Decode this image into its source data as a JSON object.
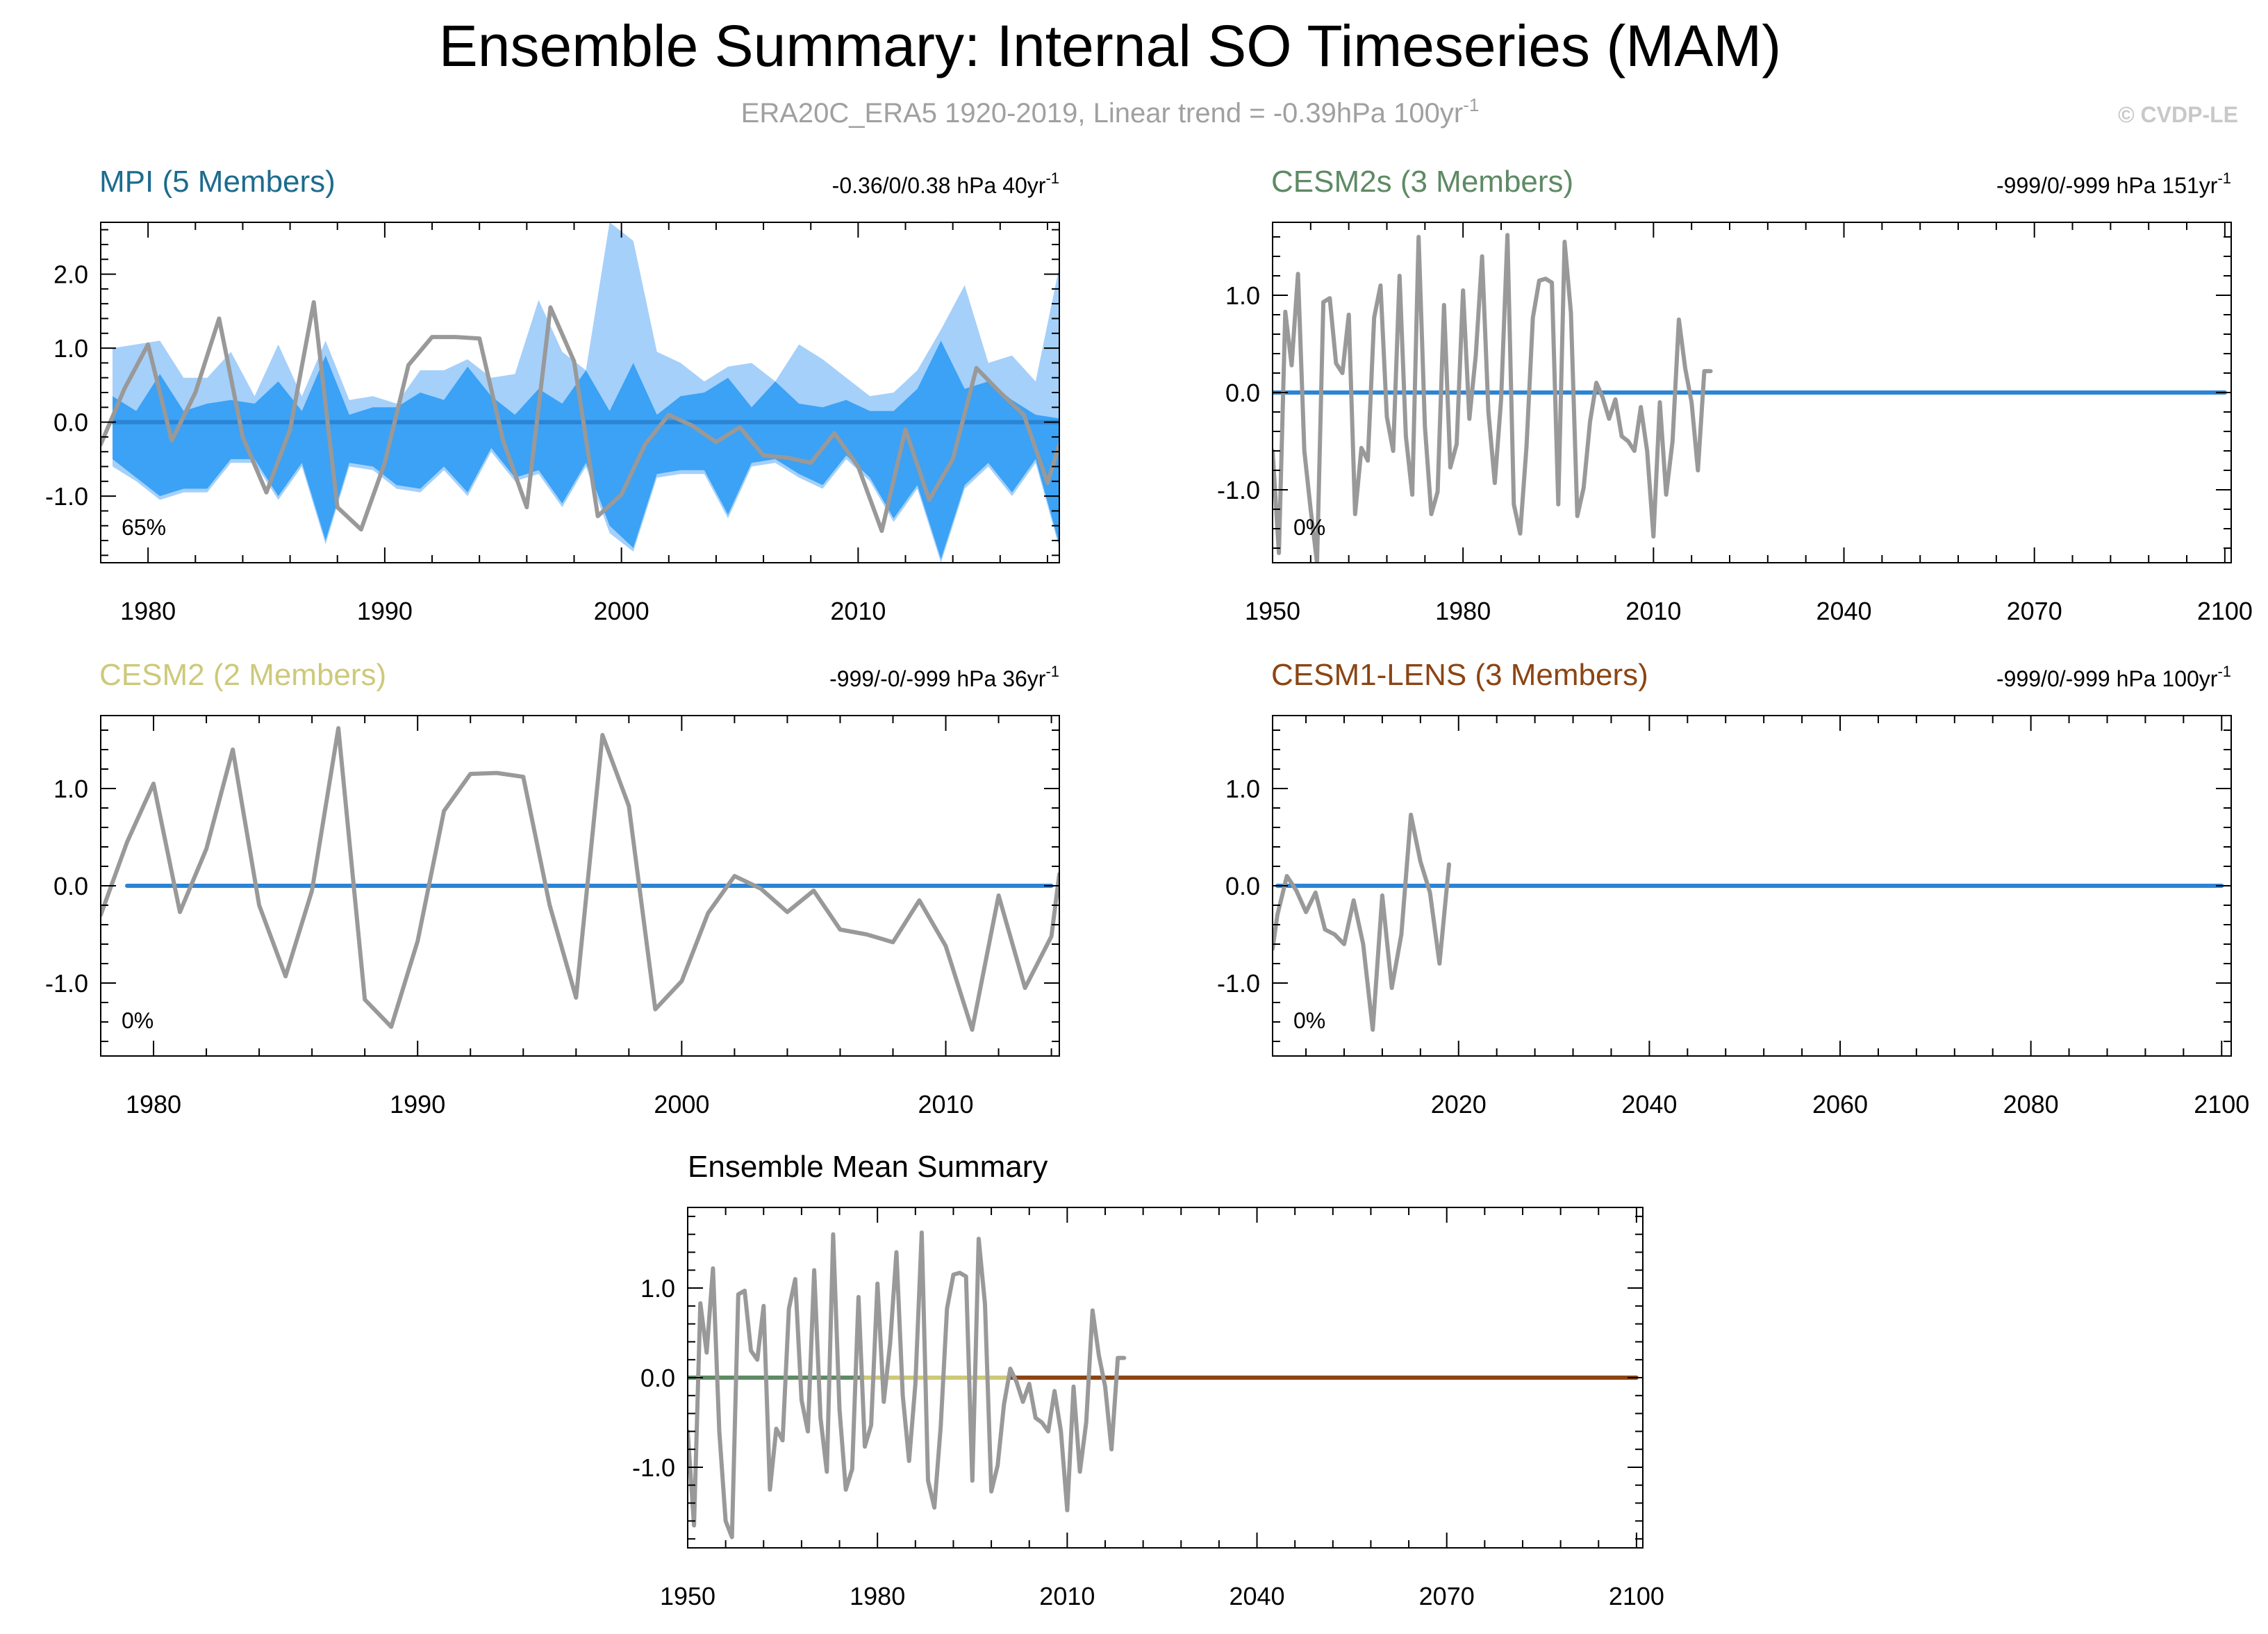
{
  "page": {
    "title": "Ensemble Summary: Internal SO Timeseries (MAM)",
    "subtitle": "ERA20C_ERA5 1920-2019, Linear trend = -0.39hPa 100yr",
    "subtitle_sup": "-1",
    "credit": "© CVDP-LE"
  },
  "colors": {
    "title": "#000000",
    "subtitle": "#a0a0a0",
    "credit": "#c8c8c8",
    "obs_line": "#999999",
    "zero_line": "#2b84d4",
    "spread_outer": "#a5d0fa",
    "spread_inner": "#3ba2f5",
    "mpi": "#1c6c8e",
    "cesm2s": "#5e8a64",
    "cesm2": "#cdc97a",
    "cesm1": "#8b4513",
    "frame": "#000000"
  },
  "chart_data": [
    {
      "id": "mpi",
      "type": "line",
      "title": "MPI (5 Members)",
      "title_color": "#1c6c8e",
      "right_label": "-0.36/0/0.38 hPa 40yr",
      "right_label_sup": "-1",
      "percent_label": "65%",
      "xlim": [
        1978,
        2018.5
      ],
      "ylim": [
        -1.9,
        2.7
      ],
      "xticks": [
        1980,
        1990,
        2000,
        2010
      ],
      "xtick_labels": [
        "1980",
        "1990",
        "2000",
        "2010"
      ],
      "yticks": [
        -1,
        0,
        1,
        2
      ],
      "ytick_labels": [
        "-1.0",
        "0.0",
        "1.0",
        "2.0"
      ],
      "ensemble_mean": {
        "x": [
          1978.5,
          2018.5
        ],
        "y": [
          0,
          0
        ],
        "color": "#2b84d4"
      },
      "spread_outer": {
        "x": [
          1978.5,
          1979.5,
          1980.5,
          1981.5,
          1982.5,
          1983.5,
          1984.5,
          1985.5,
          1986.5,
          1987.5,
          1988.5,
          1989.5,
          1990.5,
          1991.5,
          1992.5,
          1993.5,
          1994.5,
          1995.5,
          1996.5,
          1997.5,
          1998.5,
          1999.5,
          2000.5,
          2001.5,
          2002.5,
          2003.5,
          2004.5,
          2005.5,
          2006.5,
          2007.5,
          2008.5,
          2009.5,
          2010.5,
          2011.5,
          2012.5,
          2013.5,
          2014.5,
          2015.5,
          2016.5,
          2017.5,
          2018.5
        ],
        "upper": [
          1.0,
          1.05,
          1.1,
          0.6,
          0.6,
          0.95,
          0.35,
          1.05,
          0.35,
          1.1,
          0.3,
          0.35,
          0.25,
          0.7,
          0.7,
          0.85,
          0.6,
          0.65,
          1.65,
          0.95,
          0.7,
          2.7,
          2.45,
          0.95,
          0.8,
          0.55,
          0.75,
          0.8,
          0.55,
          1.05,
          0.85,
          0.6,
          0.35,
          0.4,
          0.7,
          1.25,
          1.85,
          0.8,
          0.9,
          0.55,
          2.1
        ],
        "lower": [
          -0.6,
          -0.8,
          -1.05,
          -0.95,
          -0.95,
          -0.55,
          -0.55,
          -1.05,
          -0.6,
          -1.65,
          -0.6,
          -0.65,
          -0.9,
          -0.95,
          -0.65,
          -1.0,
          -0.4,
          -0.8,
          -0.7,
          -1.15,
          -0.6,
          -1.5,
          -1.75,
          -0.75,
          -0.7,
          -0.7,
          -1.3,
          -0.6,
          -0.55,
          -0.75,
          -0.9,
          -0.5,
          -0.8,
          -1.35,
          -0.9,
          -1.9,
          -0.9,
          -0.6,
          -1.0,
          -0.55,
          -1.7
        ]
      },
      "spread_inner": {
        "x": [
          1978.5,
          1979.5,
          1980.5,
          1981.5,
          1982.5,
          1983.5,
          1984.5,
          1985.5,
          1986.5,
          1987.5,
          1988.5,
          1989.5,
          1990.5,
          1991.5,
          1992.5,
          1993.5,
          1994.5,
          1995.5,
          1996.5,
          1997.5,
          1998.5,
          1999.5,
          2000.5,
          2001.5,
          2002.5,
          2003.5,
          2004.5,
          2005.5,
          2006.5,
          2007.5,
          2008.5,
          2009.5,
          2010.5,
          2011.5,
          2012.5,
          2013.5,
          2014.5,
          2015.5,
          2016.5,
          2017.5,
          2018.5
        ],
        "upper": [
          0.35,
          0.15,
          0.65,
          0.15,
          0.25,
          0.3,
          0.25,
          0.55,
          0.15,
          0.9,
          0.1,
          0.2,
          0.2,
          0.4,
          0.3,
          0.75,
          0.35,
          0.1,
          0.45,
          0.25,
          0.7,
          0.15,
          0.8,
          0.1,
          0.35,
          0.4,
          0.6,
          0.2,
          0.55,
          0.25,
          0.2,
          0.3,
          0.15,
          0.15,
          0.45,
          1.1,
          0.45,
          0.55,
          0.3,
          0.1,
          0.05
        ],
        "lower": [
          -0.5,
          -0.75,
          -1.0,
          -0.9,
          -0.9,
          -0.5,
          -0.5,
          -1.0,
          -0.55,
          -1.6,
          -0.55,
          -0.6,
          -0.85,
          -0.9,
          -0.6,
          -0.95,
          -0.35,
          -0.75,
          -0.65,
          -1.1,
          -0.55,
          -1.4,
          -1.7,
          -0.7,
          -0.65,
          -0.65,
          -1.25,
          -0.55,
          -0.5,
          -0.7,
          -0.85,
          -0.45,
          -0.75,
          -1.3,
          -0.85,
          -1.85,
          -0.85,
          -0.55,
          -0.95,
          -0.5,
          -1.65
        ]
      },
      "obs": {
        "x": [
          1978,
          1979,
          1980,
          1981,
          1982,
          1983,
          1984,
          1985,
          1986,
          1987,
          1988,
          1989,
          1990,
          1991,
          1992,
          1993,
          1994,
          1995,
          1996,
          1997,
          1998,
          1999,
          2000,
          2001,
          2002,
          2003,
          2004,
          2005,
          2006,
          2007,
          2008,
          2009,
          2010,
          2011,
          2012,
          2013,
          2014,
          2015,
          2016,
          2017,
          2018
        ],
        "y": [
          -0.3,
          0.45,
          1.05,
          -0.25,
          0.4,
          1.4,
          -0.2,
          -0.95,
          -0.1,
          1.62,
          -1.15,
          -1.45,
          -0.55,
          0.77,
          1.15,
          1.15,
          1.13,
          -0.25,
          -1.15,
          1.55,
          0.82,
          -1.27,
          -0.98,
          -0.3,
          0.1,
          -0.05,
          -0.27,
          -0.07,
          -0.45,
          -0.48,
          -0.55,
          -0.15,
          -0.6,
          -1.47,
          -0.1,
          -1.05,
          -0.5,
          0.73,
          0.4,
          0.1,
          -0.82
        ]
      },
      "obs_tail": {
        "x": [
          2018,
          2018.5
        ],
        "y": [
          -0.82,
          -0.3
        ]
      }
    },
    {
      "id": "cesm2s",
      "type": "line",
      "title": "CESM2s (3 Members)",
      "title_color": "#5e8a64",
      "right_label": "-999/0/-999 hPa 151yr",
      "right_label_sup": "-1",
      "percent_label": "0%",
      "xlim": [
        1950,
        2101
      ],
      "ylim": [
        -1.75,
        1.75
      ],
      "xticks": [
        1950,
        1980,
        2010,
        2040,
        2070,
        2100
      ],
      "xtick_labels": [
        "1950",
        "1980",
        "2010",
        "2040",
        "2070",
        "2100"
      ],
      "yticks": [
        -1,
        0,
        1
      ],
      "ytick_labels": [
        "-1.0",
        "0.0",
        "1.0"
      ],
      "ensemble_mean": {
        "x": [
          1950,
          2100
        ],
        "y": [
          0,
          0
        ],
        "color": "#2b84d4"
      },
      "obs": {
        "x": [
          1950,
          1951,
          1952,
          1953,
          1954,
          1955,
          1956,
          1957,
          1958,
          1959,
          1960,
          1961,
          1962,
          1963,
          1964,
          1965,
          1966,
          1967,
          1968,
          1969,
          1970,
          1971,
          1972,
          1973,
          1974,
          1975,
          1976,
          1977,
          1978,
          1979,
          1980,
          1981,
          1982,
          1983,
          1984,
          1985,
          1986,
          1987,
          1988,
          1989,
          1990,
          1991,
          1992,
          1993,
          1994,
          1995,
          1996,
          1997,
          1998,
          1999,
          2000,
          2001,
          2002,
          2003,
          2004,
          2005,
          2006,
          2007,
          2008,
          2009,
          2010,
          2011,
          2012,
          2013,
          2014,
          2015,
          2016,
          2017,
          2018,
          2019
        ],
        "y": [
          -0.6,
          -1.65,
          0.83,
          0.28,
          1.22,
          -0.6,
          -1.2,
          -1.75,
          0.93,
          0.97,
          0.3,
          0.2,
          0.8,
          -1.25,
          -0.57,
          -0.7,
          0.77,
          1.1,
          -0.25,
          -0.6,
          1.2,
          -0.45,
          -1.05,
          1.6,
          -0.35,
          -1.25,
          -1.02,
          0.9,
          -0.77,
          -0.53,
          1.05,
          -0.27,
          0.38,
          1.4,
          -0.2,
          -0.93,
          -0.07,
          1.62,
          -1.15,
          -1.45,
          -0.55,
          0.77,
          1.15,
          1.17,
          1.13,
          -1.15,
          1.55,
          0.82,
          -1.27,
          -0.98,
          -0.3,
          0.1,
          -0.05,
          -0.27,
          -0.07,
          -0.45,
          -0.5,
          -0.6,
          -0.15,
          -0.6,
          -1.48,
          -0.1,
          -1.05,
          -0.5,
          0.75,
          0.25,
          -0.1,
          -0.8,
          0.22,
          0.22
        ]
      }
    },
    {
      "id": "cesm2",
      "type": "line",
      "title": "CESM2 (2 Members)",
      "title_color": "#cdc97a",
      "right_label": "-999/-0/-999 hPa 36yr",
      "right_label_sup": "-1",
      "percent_label": "0%",
      "xlim": [
        1978,
        2014.3
      ],
      "ylim": [
        -1.75,
        1.75
      ],
      "xticks": [
        1980,
        1990,
        2000,
        2010
      ],
      "xtick_labels": [
        "1980",
        "1990",
        "2000",
        "2010"
      ],
      "yticks": [
        -1,
        0,
        1
      ],
      "ytick_labels": [
        "-1.0",
        "0.0",
        "1.0"
      ],
      "ensemble_mean": {
        "x": [
          1979,
          2014
        ],
        "y": [
          0,
          0
        ],
        "color": "#2b84d4"
      },
      "obs": {
        "x": [
          1978,
          1979,
          1980,
          1981,
          1982,
          1983,
          1984,
          1985,
          1986,
          1987,
          1988,
          1989,
          1990,
          1991,
          1992,
          1993,
          1994,
          1995,
          1996,
          1997,
          1998,
          1999,
          2000,
          2001,
          2002,
          2003,
          2004,
          2005,
          2006,
          2007,
          2008,
          2009,
          2010,
          2011,
          2012,
          2013,
          2014,
          2014.3
        ],
        "y": [
          -0.3,
          0.45,
          1.05,
          -0.27,
          0.38,
          1.4,
          -0.2,
          -0.93,
          -0.05,
          1.62,
          -1.17,
          -1.45,
          -0.57,
          0.77,
          1.15,
          1.16,
          1.12,
          -0.2,
          -1.15,
          1.55,
          0.82,
          -1.27,
          -0.98,
          -0.28,
          0.1,
          -0.03,
          -0.27,
          -0.05,
          -0.45,
          -0.5,
          -0.58,
          -0.15,
          -0.62,
          -1.48,
          -0.1,
          -1.05,
          -0.52,
          0.12
        ]
      }
    },
    {
      "id": "cesm1",
      "type": "line",
      "title": "CESM1-LENS (3 Members)",
      "title_color": "#8b4513",
      "right_label": "-999/0/-999 hPa 100yr",
      "right_label_sup": "-1",
      "percent_label": "0%",
      "xlim": [
        2000.5,
        2101
      ],
      "ylim": [
        -1.75,
        1.75
      ],
      "xticks": [
        2020,
        2040,
        2060,
        2080,
        2100
      ],
      "xtick_labels": [
        "2020",
        "2040",
        "2060",
        "2080",
        "2100"
      ],
      "yticks": [
        -1,
        0,
        1
      ],
      "ytick_labels": [
        "-1.0",
        "0.0",
        "1.0"
      ],
      "ensemble_mean": {
        "x": [
          2001,
          2100
        ],
        "y": [
          0,
          0
        ],
        "color": "#2b84d4"
      },
      "obs": {
        "x": [
          2000.5,
          2001,
          2002,
          2003,
          2004,
          2005,
          2006,
          2007,
          2008,
          2009,
          2010,
          2011,
          2012,
          2013,
          2014,
          2015,
          2016,
          2017,
          2018,
          2019
        ],
        "y": [
          -0.65,
          -0.3,
          0.1,
          -0.05,
          -0.27,
          -0.07,
          -0.45,
          -0.5,
          -0.6,
          -0.15,
          -0.6,
          -1.48,
          -0.1,
          -1.05,
          -0.5,
          0.73,
          0.25,
          -0.07,
          -0.8,
          0.22
        ]
      }
    },
    {
      "id": "ensmean",
      "type": "line",
      "title": "Ensemble Mean Summary",
      "title_color": "#000000",
      "xlim": [
        1950,
        2101
      ],
      "ylim": [
        -1.9,
        1.9
      ],
      "xticks": [
        1950,
        1980,
        2010,
        2040,
        2070,
        2100
      ],
      "xtick_labels": [
        "1950",
        "1980",
        "2010",
        "2040",
        "2070",
        "2100"
      ],
      "yticks": [
        -1,
        0,
        1
      ],
      "ytick_labels": [
        "-1.0",
        "0.0",
        "1.0"
      ],
      "mean_segments": [
        {
          "x": [
            1950,
            1978
          ],
          "y": [
            0,
            0
          ],
          "color": "#5e8a64"
        },
        {
          "x": [
            1978,
            2001
          ],
          "y": [
            0,
            0
          ],
          "color": "#cdc97a"
        },
        {
          "x": [
            2001,
            2100
          ],
          "y": [
            0,
            0
          ],
          "color": "#8b4513"
        }
      ],
      "obs": {
        "x": [
          1950,
          1951,
          1952,
          1953,
          1954,
          1955,
          1956,
          1957,
          1958,
          1959,
          1960,
          1961,
          1962,
          1963,
          1964,
          1965,
          1966,
          1967,
          1968,
          1969,
          1970,
          1971,
          1972,
          1973,
          1974,
          1975,
          1976,
          1977,
          1978,
          1979,
          1980,
          1981,
          1982,
          1983,
          1984,
          1985,
          1986,
          1987,
          1988,
          1989,
          1990,
          1991,
          1992,
          1993,
          1994,
          1995,
          1996,
          1997,
          1998,
          1999,
          2000,
          2001,
          2002,
          2003,
          2004,
          2005,
          2006,
          2007,
          2008,
          2009,
          2010,
          2011,
          2012,
          2013,
          2014,
          2015,
          2016,
          2017,
          2018,
          2019
        ],
        "y": [
          -0.6,
          -1.65,
          0.83,
          0.28,
          1.22,
          -0.6,
          -1.6,
          -1.78,
          0.93,
          0.97,
          0.3,
          0.2,
          0.8,
          -1.25,
          -0.57,
          -0.7,
          0.77,
          1.1,
          -0.25,
          -0.6,
          1.2,
          -0.45,
          -1.05,
          1.6,
          -0.35,
          -1.25,
          -1.02,
          0.9,
          -0.77,
          -0.53,
          1.05,
          -0.27,
          0.38,
          1.4,
          -0.2,
          -0.93,
          -0.07,
          1.62,
          -1.15,
          -1.45,
          -0.55,
          0.77,
          1.15,
          1.17,
          1.13,
          -1.15,
          1.55,
          0.82,
          -1.27,
          -0.98,
          -0.3,
          0.1,
          -0.05,
          -0.27,
          -0.07,
          -0.45,
          -0.5,
          -0.6,
          -0.15,
          -0.6,
          -1.48,
          -0.1,
          -1.05,
          -0.5,
          0.75,
          0.25,
          -0.1,
          -0.8,
          0.22,
          0.22
        ]
      }
    }
  ]
}
